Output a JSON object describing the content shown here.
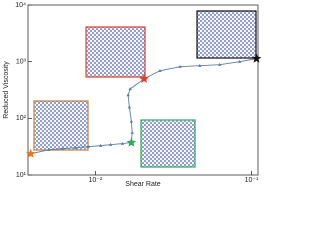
{
  "chart_data": {
    "type": "line",
    "x_label": "Shear Rate",
    "y_label": "Reduced Viscosity",
    "xscale": "log",
    "yscale": "log",
    "xlim": [
      0.0037,
      0.11
    ],
    "ylim": [
      10,
      10000
    ],
    "xticks": [
      {
        "value": 0.01,
        "label": "10⁻²"
      },
      {
        "value": 0.1,
        "label": "10⁻¹"
      }
    ],
    "yticks": [
      {
        "value": 10,
        "label": "10¹"
      },
      {
        "value": 100,
        "label": "10²"
      },
      {
        "value": 1000,
        "label": "10³"
      },
      {
        "value": 10000,
        "label": "10⁴"
      }
    ],
    "series": [
      {
        "marker": "triangle",
        "color": "#5a7fa8",
        "x": [
          0.00385,
          0.00502,
          0.00616,
          0.00746,
          0.00903,
          0.0108,
          0.0125,
          0.0149,
          0.017,
          0.0172,
          0.017,
          0.0165,
          0.0162,
          0.0167,
          0.0205,
          0.0259,
          0.0348,
          0.0466,
          0.0625,
          0.0839,
          0.1076
        ],
        "values": [
          23.7,
          27.9,
          29.1,
          30.4,
          31.6,
          33,
          34.3,
          35.8,
          37.3,
          56.2,
          88.4,
          157,
          258,
          330,
          497,
          691,
          814,
          849,
          884,
          1000,
          1132
        ]
      },
      {
        "marker": "star",
        "color": "#e07b20",
        "x": [
          0.00385
        ],
        "values": [
          23.7
        ]
      },
      {
        "marker": "star",
        "color": "#2eaa5a",
        "x": [
          0.017
        ],
        "values": [
          37.3
        ]
      },
      {
        "marker": "star",
        "color": "#e0402a",
        "x": [
          0.0205
        ],
        "values": [
          497
        ]
      },
      {
        "marker": "star",
        "color": "#111111",
        "x": [
          0.1076
        ],
        "values": [
          1132
        ]
      }
    ]
  }
}
